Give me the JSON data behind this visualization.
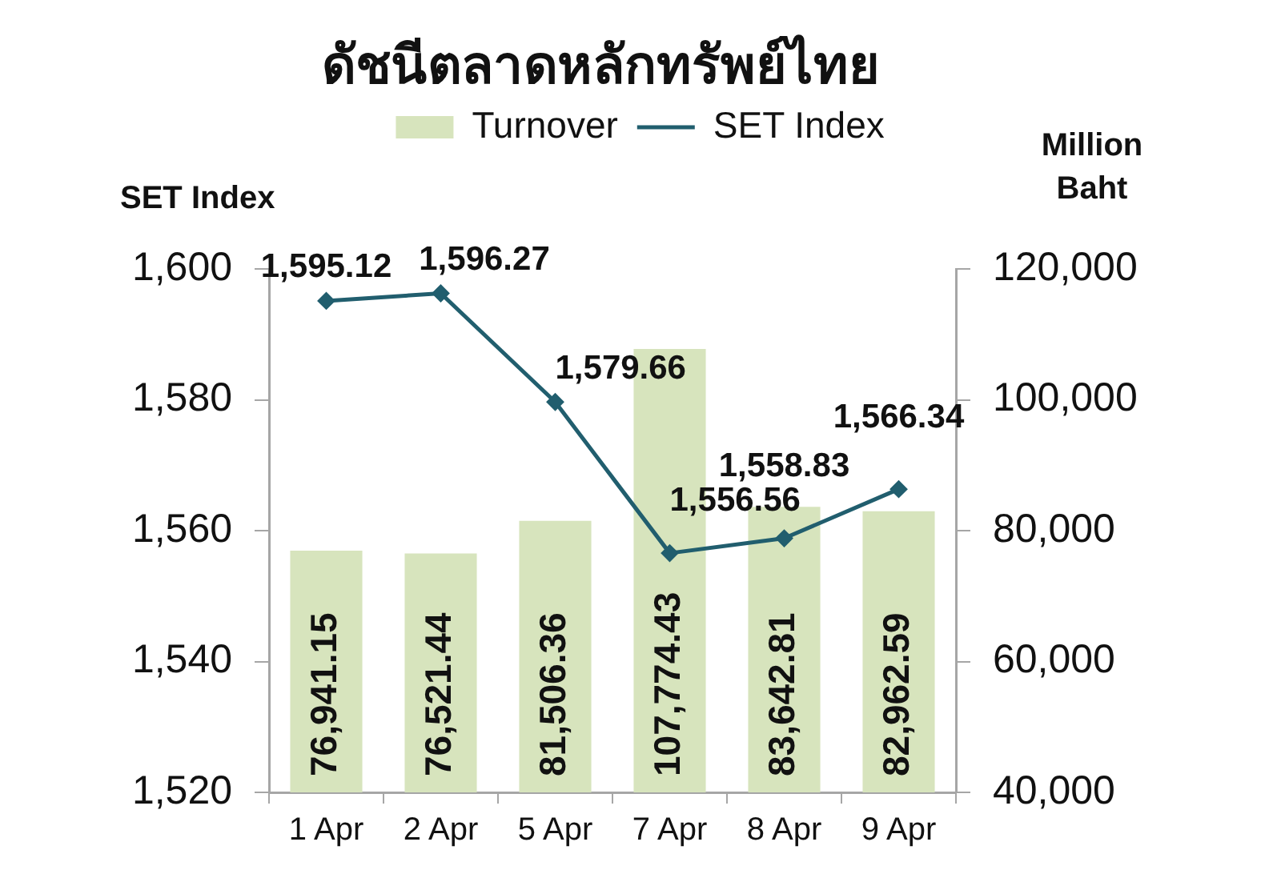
{
  "chart_data": {
    "type": "bar",
    "title": "ดัชนีตลาดหลักทรัพย์ไทย",
    "ylabel": "SET Index",
    "y2label": "Million Baht",
    "categories": [
      "1 Apr",
      "2 Apr",
      "5 Apr",
      "7 Apr",
      "8 Apr",
      "9 Apr"
    ],
    "series": [
      {
        "name": "Turnover",
        "type": "bar",
        "axis": "y2",
        "color": "#d7e4bd",
        "values": [
          76941.15,
          76521.44,
          81506.36,
          107774.43,
          83642.81,
          82962.59
        ],
        "value_labels": [
          "76,941.15",
          "76,521.44",
          "81,506.36",
          "107,774.43",
          "83,642.81",
          "82,962.59"
        ]
      },
      {
        "name": "SET Index",
        "type": "line",
        "color": "#215e6e",
        "marker": "diamond",
        "values": [
          1595.12,
          1596.27,
          1579.66,
          1556.56,
          1558.83,
          1566.34
        ],
        "value_labels": [
          "1,595.12",
          "1,596.27",
          "1,579.66",
          "1,556.56",
          "1,558.83",
          "1,566.34"
        ]
      }
    ],
    "ylim": [
      1520,
      1600
    ],
    "yticks": [
      {
        "value": 1520,
        "label": "1,520"
      },
      {
        "value": 1540,
        "label": "1,540"
      },
      {
        "value": 1560,
        "label": "1,560"
      },
      {
        "value": 1580,
        "label": "1,580"
      },
      {
        "value": 1600,
        "label": "1,600"
      }
    ],
    "y2lim": [
      40000,
      120000
    ],
    "y2ticks": [
      {
        "value": 40000,
        "label": "40,000"
      },
      {
        "value": 60000,
        "label": "60,000"
      },
      {
        "value": 80000,
        "label": "80,000"
      },
      {
        "value": 100000,
        "label": "100,000"
      },
      {
        "value": 120000,
        "label": "120,000"
      }
    ],
    "legend": "top"
  }
}
